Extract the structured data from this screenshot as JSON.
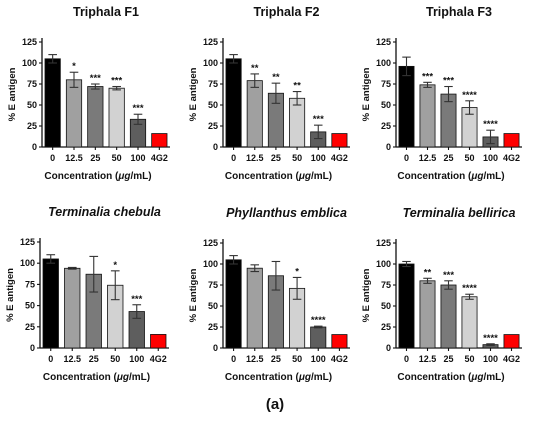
{
  "figure_label": "(a)",
  "colors": {
    "bar_0": "#000000",
    "bar_12.5": "#a0a0a0",
    "bar_25": "#7a7a7a",
    "bar_50": "#d2d2d2",
    "bar_100": "#5e5e5e",
    "bar_4G2": "#ff0000",
    "error_bar": "#333333"
  },
  "chart_data": [
    {
      "type": "bar",
      "title": "Triphala  F1",
      "title_italic": false,
      "categories": [
        "0",
        "12.5",
        "25",
        "50",
        "100",
        "4G2"
      ],
      "values": [
        105,
        80,
        72,
        70,
        33,
        16
      ],
      "errors": [
        5,
        9,
        3,
        2,
        6,
        0.5
      ],
      "significance": [
        "",
        "*",
        "***",
        "***",
        "***",
        ""
      ],
      "xlabel": "Concentration (μg/mL)",
      "ylabel": "% E antigen",
      "ylim": [
        0,
        125
      ],
      "yticks": [
        0,
        25,
        50,
        75,
        100,
        125
      ]
    },
    {
      "type": "bar",
      "title": "Triphala  F2",
      "title_italic": false,
      "categories": [
        "0",
        "12.5",
        "25",
        "50",
        "100",
        "4G2"
      ],
      "values": [
        105,
        79,
        64,
        58,
        18,
        16
      ],
      "errors": [
        5,
        8,
        12,
        8,
        8,
        0.5
      ],
      "significance": [
        "",
        "**",
        "**",
        "**",
        "***",
        ""
      ],
      "xlabel": "Concentration (μg/mL)",
      "ylabel": "% E antigen",
      "ylim": [
        0,
        125
      ],
      "yticks": [
        0,
        25,
        50,
        75,
        100,
        125
      ]
    },
    {
      "type": "bar",
      "title": "Triphala  F3",
      "title_italic": false,
      "categories": [
        "0",
        "12.5",
        "25",
        "50",
        "100",
        "4G2"
      ],
      "values": [
        96,
        74,
        63,
        47,
        12,
        16
      ],
      "errors": [
        11,
        3,
        9,
        8,
        8,
        0.5
      ],
      "significance": [
        "",
        "***",
        "***",
        "****",
        "****",
        ""
      ],
      "xlabel": "Concentration (μg/mL)",
      "ylabel": "% E antigen",
      "ylim": [
        0,
        125
      ],
      "yticks": [
        0,
        25,
        50,
        75,
        100,
        125
      ]
    },
    {
      "type": "bar",
      "title": "Terminalia chebula",
      "title_italic": true,
      "categories": [
        "0",
        "12.5",
        "25",
        "50",
        "100",
        "4G2"
      ],
      "values": [
        105,
        94,
        87,
        74,
        43,
        16
      ],
      "errors": [
        5,
        1,
        21,
        17,
        8,
        0.5
      ],
      "significance": [
        "",
        "",
        "",
        "*",
        "***",
        ""
      ],
      "xlabel": "Concentration (μg/mL)",
      "ylabel": "% E antigen",
      "ylim": [
        0,
        125
      ],
      "yticks": [
        0,
        25,
        50,
        75,
        100,
        125
      ]
    },
    {
      "type": "bar",
      "title": "Phyllanthus emblica",
      "title_italic": true,
      "categories": [
        "0",
        "12.5",
        "25",
        "50",
        "100",
        "4G2"
      ],
      "values": [
        105,
        95,
        86,
        71,
        25,
        16
      ],
      "errors": [
        5,
        4,
        17,
        13,
        1,
        0.5
      ],
      "significance": [
        "",
        "",
        "",
        "*",
        "****",
        ""
      ],
      "xlabel": "Concentration (μg/mL)",
      "ylabel": "% E antigen",
      "ylim": [
        0,
        125
      ],
      "yticks": [
        0,
        25,
        50,
        75,
        100,
        125
      ]
    },
    {
      "type": "bar",
      "title": "Terminalia bellirica",
      "title_italic": true,
      "categories": [
        "0",
        "12.5",
        "25",
        "50",
        "100",
        "4G2"
      ],
      "values": [
        100,
        80,
        75,
        61,
        4,
        16
      ],
      "errors": [
        3,
        3,
        5,
        3,
        1,
        0.5
      ],
      "significance": [
        "",
        "**",
        "***",
        "****",
        "****",
        ""
      ],
      "xlabel": "Concentration (μg/mL)",
      "ylabel": "% E antigen",
      "ylim": [
        0,
        125
      ],
      "yticks": [
        0,
        25,
        50,
        75,
        100,
        125
      ]
    }
  ]
}
